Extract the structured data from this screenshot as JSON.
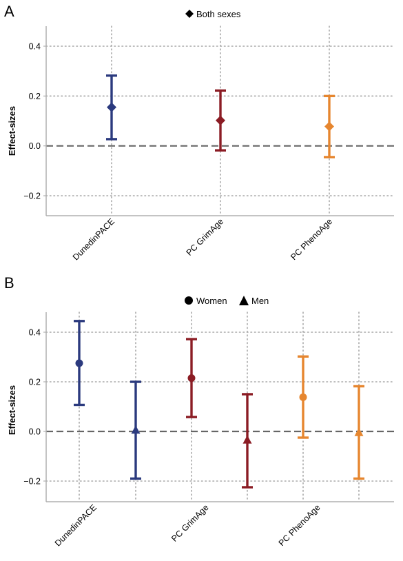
{
  "colors": {
    "DunedinPACE": "#2b3a7e",
    "PC GrimAge": "#8b1c24",
    "PC PhenoAge": "#e6862f",
    "axis": "#b0b0b0",
    "grid": "#a8a8a8",
    "zero": "#666666"
  },
  "chart_data": [
    {
      "panel": "A",
      "type": "scatter",
      "legend": [
        {
          "label": "Both sexes",
          "marker": "diamond"
        }
      ],
      "legend_position": "top-center",
      "ylabel": "Effect-sizes",
      "ylim": [
        -0.28,
        0.48
      ],
      "yticks": [
        -0.2,
        0.0,
        0.2,
        0.4
      ],
      "ytick_labels": [
        "−0.2",
        "0.0",
        "0.2",
        "0.4"
      ],
      "categories": [
        "DunedinPACE",
        "PC GrimAge",
        "PC PhenoAge"
      ],
      "grid": true,
      "series": [
        {
          "marker": "diamond",
          "points": [
            {
              "category": "DunedinPACE",
              "estimate": 0.155,
              "lower": 0.027,
              "upper": 0.282
            },
            {
              "category": "PC GrimAge",
              "estimate": 0.102,
              "lower": -0.018,
              "upper": 0.222
            },
            {
              "category": "PC PhenoAge",
              "estimate": 0.078,
              "lower": -0.045,
              "upper": 0.2
            }
          ]
        }
      ]
    },
    {
      "panel": "B",
      "type": "scatter",
      "legend": [
        {
          "label": "Women",
          "marker": "circle"
        },
        {
          "label": "Men",
          "marker": "triangle"
        }
      ],
      "legend_position": "top-center",
      "ylabel": "Effect-sizes",
      "ylim": [
        -0.28,
        0.48
      ],
      "yticks": [
        -0.2,
        0.0,
        0.2,
        0.4
      ],
      "ytick_labels": [
        "−0.2",
        "0.0",
        "0.2",
        "0.4"
      ],
      "categories": [
        "DunedinPACE",
        "PC GrimAge",
        "PC PhenoAge"
      ],
      "grid": true,
      "series": [
        {
          "name": "Women",
          "marker": "circle",
          "points": [
            {
              "category": "DunedinPACE",
              "estimate": 0.275,
              "lower": 0.107,
              "upper": 0.445
            },
            {
              "category": "PC GrimAge",
              "estimate": 0.215,
              "lower": 0.058,
              "upper": 0.372
            },
            {
              "category": "PC PhenoAge",
              "estimate": 0.138,
              "lower": -0.025,
              "upper": 0.302
            }
          ]
        },
        {
          "name": "Men",
          "marker": "triangle",
          "points": [
            {
              "category": "DunedinPACE",
              "estimate": 0.005,
              "lower": -0.19,
              "upper": 0.2
            },
            {
              "category": "PC GrimAge",
              "estimate": -0.035,
              "lower": -0.225,
              "upper": 0.15
            },
            {
              "category": "PC PhenoAge",
              "estimate": -0.005,
              "lower": -0.19,
              "upper": 0.182
            }
          ]
        }
      ]
    }
  ]
}
